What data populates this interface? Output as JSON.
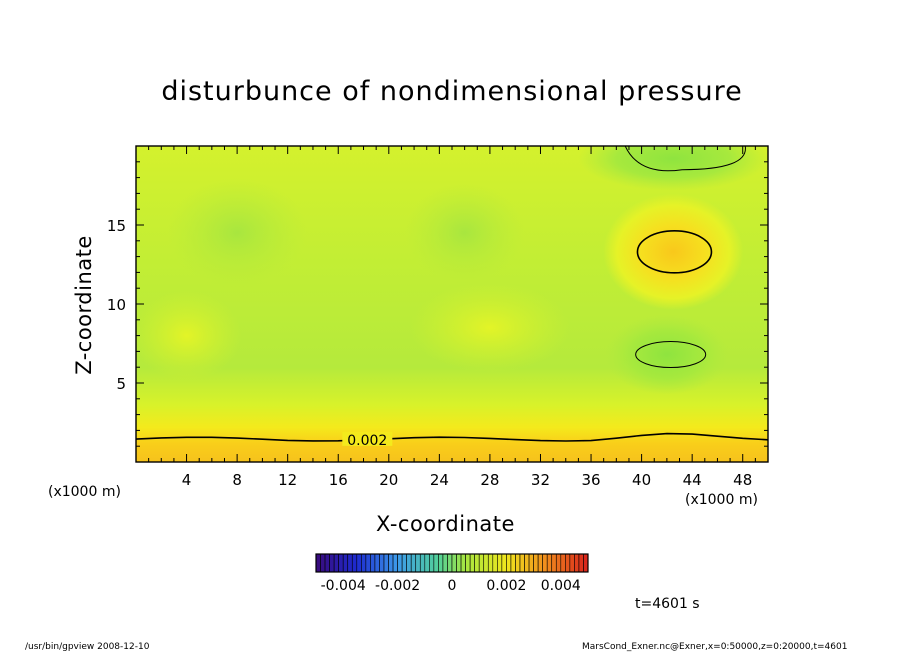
{
  "chart_data": {
    "type": "heatmap",
    "title": "disturbunce of nondimensional pressure",
    "xlabel": "X-coordinate",
    "ylabel": "Z-coordinate",
    "x_unit_left": "(x1000 m)",
    "x_unit_right": "(x1000 m)",
    "xlim": [
      0,
      50
    ],
    "ylim": [
      0,
      20
    ],
    "x_ticks": [
      4,
      8,
      12,
      16,
      20,
      24,
      28,
      32,
      36,
      40,
      44,
      48
    ],
    "y_ticks": [
      5,
      10,
      15
    ],
    "contour_labels": [
      {
        "x": 18.3,
        "z": 1.4,
        "text": "0.002"
      }
    ],
    "colorbar": {
      "min": -0.005,
      "max": 0.005,
      "tick_labels": [
        "-0.004",
        "-0.002",
        "0",
        "0.002",
        "0.004"
      ],
      "tick_values": [
        -0.004,
        -0.002,
        0,
        0.002,
        0.004
      ]
    },
    "time_label": "t=4601 s"
  },
  "footer": {
    "left": "/usr/bin/gpview   2008-12-10",
    "right": "MarsCond_Exner.nc@Exner,x=0:50000,z=0:20000,t=4601"
  }
}
